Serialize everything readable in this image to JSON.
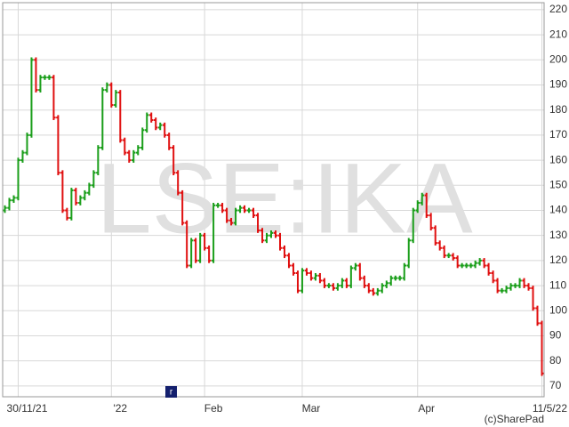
{
  "chart_data": {
    "type": "ohlc",
    "watermark": "LSE:IKA",
    "credit": "(c)SharePad",
    "marker_label": "r",
    "up_color": "#1a9e1a",
    "down_color": "#e01010",
    "grid": true,
    "ylim": [
      65.7,
      222.8
    ],
    "yticks": [
      70,
      80,
      90,
      100,
      110,
      120,
      130,
      140,
      150,
      160,
      170,
      180,
      190,
      200,
      210,
      220
    ],
    "categories": [
      null,
      null,
      null,
      "30/11/21",
      null,
      null,
      null,
      null,
      null,
      null,
      null,
      null,
      null,
      null,
      null,
      null,
      null,
      null,
      null,
      null,
      null,
      null,
      null,
      null,
      "'22",
      null,
      null,
      null,
      null,
      null,
      null,
      null,
      null,
      null,
      null,
      null,
      null,
      null,
      null,
      null,
      null,
      null,
      null,
      null,
      null,
      "Feb",
      null,
      null,
      null,
      null,
      null,
      null,
      null,
      null,
      null,
      null,
      null,
      null,
      null,
      null,
      null,
      null,
      null,
      null,
      null,
      null,
      null,
      "Mar",
      null,
      null,
      null,
      null,
      null,
      null,
      null,
      null,
      null,
      null,
      null,
      null,
      null,
      null,
      null,
      null,
      null,
      null,
      null,
      null,
      null,
      null,
      null,
      null,
      null,
      "Apr",
      null,
      null,
      null,
      null,
      null,
      null,
      null,
      null,
      null,
      null,
      null,
      null,
      null,
      null,
      null,
      null,
      null,
      null,
      null,
      null,
      null,
      null,
      null,
      null,
      null,
      null,
      null,
      "11/5/22"
    ],
    "open": [
      140,
      141,
      144,
      145,
      160,
      163,
      170,
      200,
      188,
      193,
      193,
      193,
      177,
      155,
      140,
      137,
      148,
      143,
      145,
      147,
      150,
      155,
      165,
      188,
      190,
      182,
      187,
      168,
      163,
      160,
      163,
      165,
      172,
      178,
      176,
      173,
      174,
      170,
      165,
      155,
      147,
      135,
      118,
      128,
      120,
      130,
      125,
      120,
      142,
      142,
      140,
      136,
      135,
      140,
      141,
      140,
      140,
      138,
      132,
      128,
      130,
      131,
      130,
      125,
      122,
      118,
      115,
      108,
      116,
      115,
      113,
      114,
      112,
      110,
      110,
      109,
      110,
      112,
      110,
      117,
      118,
      113,
      110,
      108,
      107,
      108,
      110,
      111,
      113,
      113,
      113,
      118,
      128,
      140,
      143,
      146,
      138,
      133,
      127,
      125,
      122,
      122,
      121,
      118,
      118,
      118,
      118,
      119,
      120,
      118,
      115,
      112,
      108,
      108,
      109,
      110,
      110,
      112,
      110,
      109,
      101,
      95
    ],
    "high": [
      142,
      145,
      146,
      161,
      164,
      171,
      201,
      201,
      194,
      194,
      194,
      194,
      178,
      156,
      141,
      149,
      149,
      146,
      148,
      151,
      156,
      166,
      189,
      191,
      191,
      188,
      188,
      169,
      164,
      164,
      166,
      173,
      179,
      179,
      177,
      175,
      175,
      171,
      166,
      156,
      148,
      136,
      129,
      129,
      131,
      131,
      126,
      143,
      143,
      143,
      141,
      137,
      141,
      142,
      142,
      141,
      141,
      139,
      133,
      131,
      132,
      132,
      131,
      126,
      123,
      119,
      116,
      117,
      117,
      116,
      115,
      115,
      113,
      111,
      111,
      111,
      113,
      113,
      118,
      119,
      119,
      114,
      111,
      109,
      109,
      111,
      112,
      114,
      114,
      114,
      119,
      129,
      141,
      144,
      147,
      147,
      139,
      134,
      128,
      126,
      123,
      123,
      122,
      119,
      119,
      119,
      120,
      121,
      121,
      119,
      116,
      113,
      109,
      110,
      111,
      111,
      113,
      113,
      111,
      110,
      102,
      96
    ],
    "low": [
      139,
      140,
      143,
      144,
      159,
      162,
      169,
      187,
      187,
      192,
      192,
      176,
      154,
      139,
      136,
      136,
      142,
      142,
      144,
      146,
      149,
      154,
      164,
      187,
      181,
      181,
      167,
      162,
      159,
      159,
      162,
      164,
      171,
      175,
      172,
      172,
      169,
      164,
      154,
      146,
      134,
      117,
      117,
      119,
      119,
      124,
      119,
      119,
      141,
      139,
      135,
      134,
      134,
      139,
      139,
      139,
      137,
      131,
      127,
      127,
      129,
      129,
      124,
      121,
      117,
      114,
      107,
      107,
      114,
      112,
      112,
      111,
      109,
      109,
      108,
      108,
      109,
      109,
      109,
      116,
      112,
      109,
      107,
      106,
      106,
      107,
      109,
      110,
      112,
      112,
      112,
      117,
      127,
      139,
      142,
      137,
      132,
      126,
      124,
      121,
      121,
      120,
      117,
      117,
      117,
      117,
      117,
      118,
      117,
      114,
      111,
      107,
      107,
      107,
      108,
      109,
      109,
      109,
      108,
      100,
      94,
      74
    ],
    "close": [
      141,
      144,
      145,
      160,
      163,
      170,
      200,
      188,
      193,
      193,
      193,
      177,
      155,
      140,
      137,
      148,
      143,
      145,
      147,
      150,
      155,
      165,
      188,
      190,
      182,
      187,
      168,
      163,
      160,
      163,
      165,
      172,
      178,
      176,
      173,
      174,
      170,
      165,
      155,
      147,
      135,
      118,
      128,
      120,
      130,
      125,
      120,
      142,
      142,
      140,
      136,
      135,
      140,
      141,
      140,
      140,
      138,
      132,
      128,
      130,
      131,
      130,
      125,
      122,
      118,
      115,
      108,
      116,
      115,
      113,
      114,
      112,
      110,
      110,
      109,
      110,
      112,
      110,
      117,
      118,
      113,
      110,
      108,
      107,
      108,
      110,
      111,
      113,
      113,
      113,
      118,
      128,
      140,
      143,
      146,
      138,
      133,
      127,
      125,
      122,
      122,
      121,
      118,
      118,
      118,
      118,
      119,
      120,
      118,
      115,
      112,
      108,
      108,
      109,
      110,
      110,
      112,
      110,
      109,
      101,
      95,
      75
    ]
  }
}
